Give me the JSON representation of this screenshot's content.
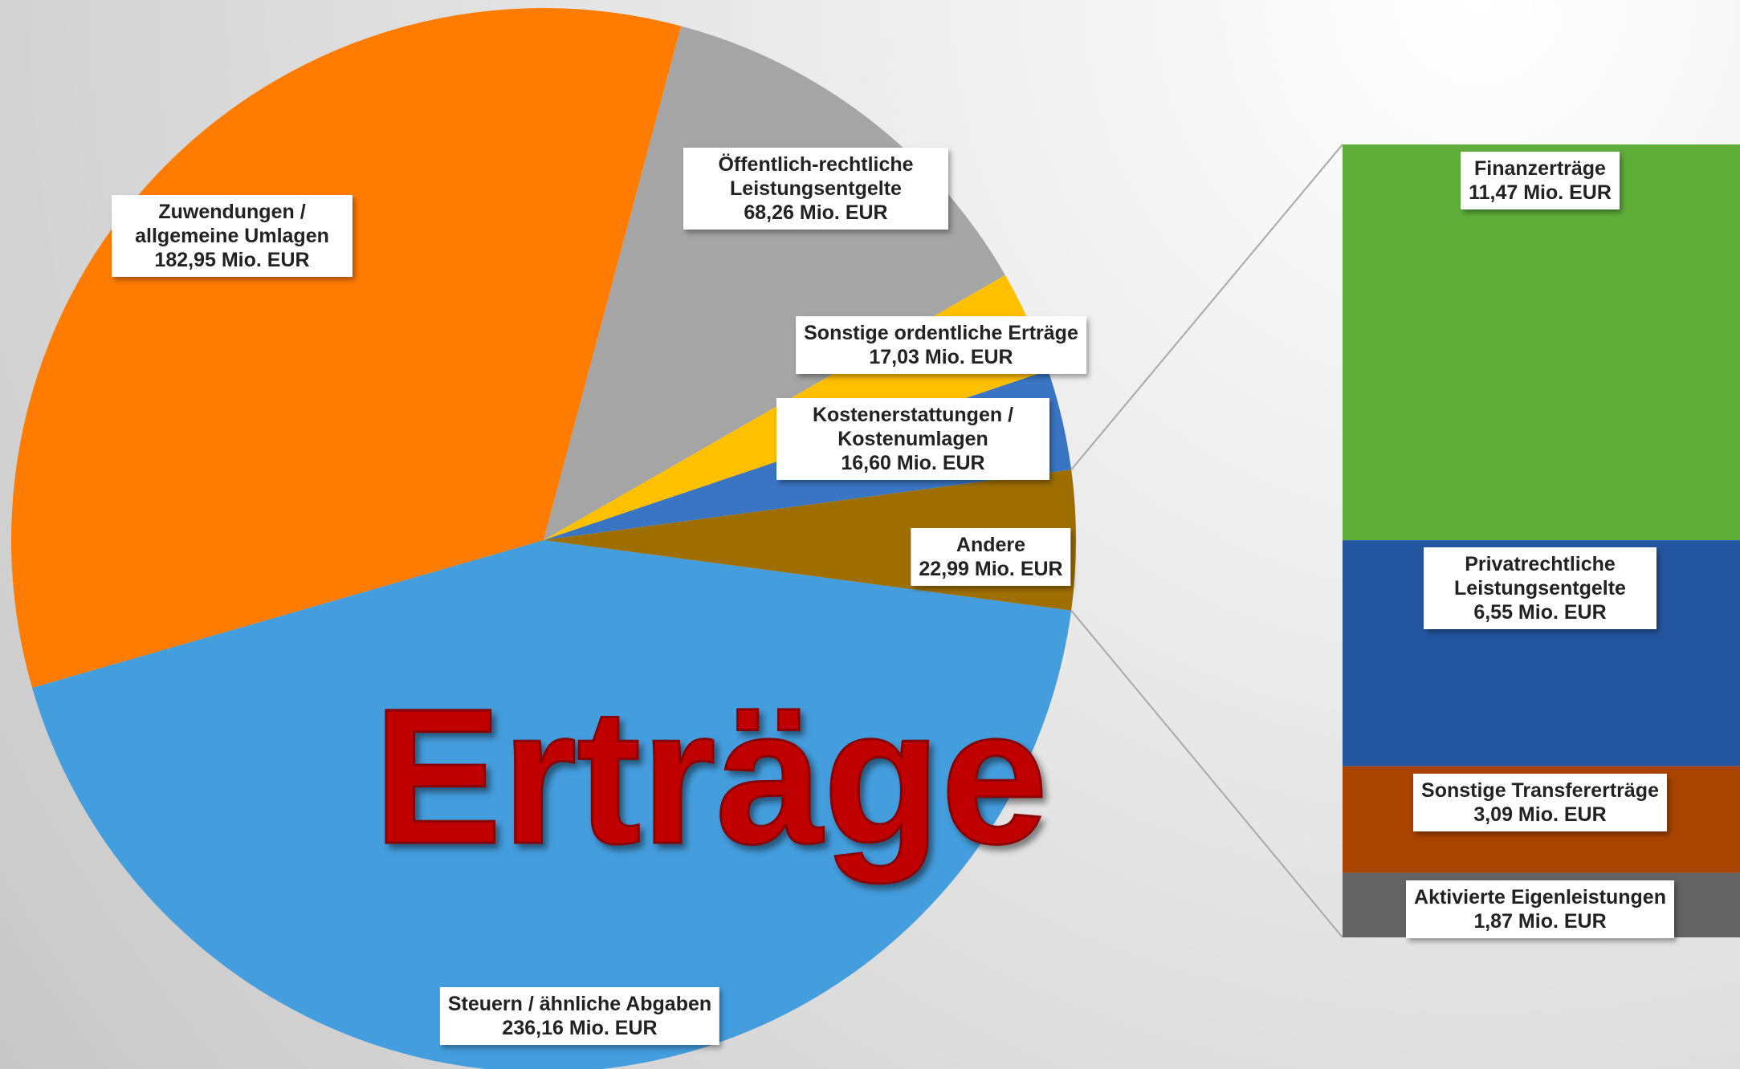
{
  "chart_data": {
    "type": "pie",
    "title": "Erträge",
    "categories": [
      "Steuern / ähnliche Abgaben",
      "Zuwendungen / allgemeine Umlagen",
      "Öffentlich-rechtliche Leistungsentgelte",
      "Sonstige ordentliche Erträge",
      "Kostenerstattungen / Kostenumlagen",
      "Andere"
    ],
    "values": [
      236.16,
      182.95,
      68.26,
      17.03,
      16.6,
      22.99
    ],
    "value_labels": [
      "236,16 Mio. EUR",
      "182,95 Mio. EUR",
      "68,26 Mio. EUR",
      "17,03 Mio. EUR",
      "16,60 Mio. EUR",
      "22,99 Mio. EUR"
    ],
    "colors": [
      "#449ddd",
      "#ff7c00",
      "#a5a5a5",
      "#ffc000",
      "#3a75c4",
      "#9e6f00"
    ],
    "breakdown": {
      "type": "bar",
      "categories": [
        "Finanzerträge",
        "Privatrechtliche Leistungsentgelte",
        "Sonstige Transfererträge",
        "Aktivierte Eigenleistungen"
      ],
      "values": [
        11.47,
        6.55,
        3.09,
        1.87
      ],
      "value_labels": [
        "11,47 Mio. EUR",
        "6,55 Mio. EUR",
        "3,09 Mio. EUR",
        "1,87 Mio. EUR"
      ],
      "colors": [
        "#5fae3a",
        "#2456a0",
        "#a84300",
        "#636363"
      ]
    }
  }
}
